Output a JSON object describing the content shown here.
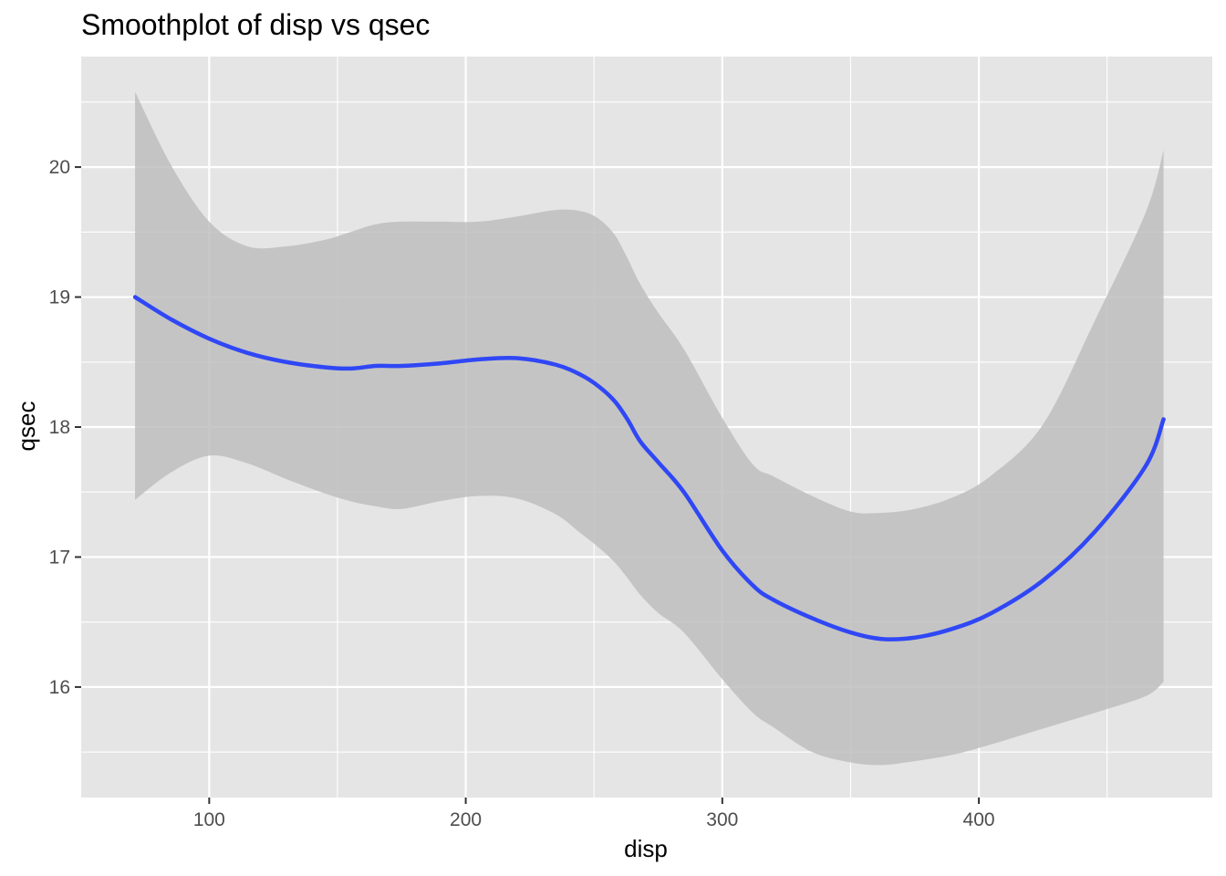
{
  "chart_data": {
    "type": "line",
    "title": "Smoothplot of disp vs qsec",
    "xlabel": "disp",
    "ylabel": "qsec",
    "xlim": [
      50.1,
      491.0
    ],
    "ylim": [
      15.15,
      20.85
    ],
    "x_ticks": [
      100,
      200,
      300,
      400
    ],
    "x_tick_labels": [
      "100",
      "200",
      "300",
      "400"
    ],
    "y_ticks": [
      16,
      17,
      18,
      19,
      20
    ],
    "y_tick_labels": [
      "16",
      "17",
      "18",
      "19",
      "20"
    ],
    "grid": true,
    "legend": false,
    "colors": {
      "panel_background": "#e5e5e5",
      "grid": "#ffffff",
      "ribbon": "#bebebe",
      "line": "#3047f5",
      "tick_label": "#4d4d4d",
      "tick_mark": "#333333"
    },
    "series": [
      {
        "x": [
          71.1,
          85,
          100,
          115,
          130,
          145,
          155,
          165,
          175,
          190,
          205,
          220,
          235,
          245,
          252,
          258,
          263,
          268,
          275,
          285,
          300,
          312,
          320,
          335,
          350,
          362,
          375,
          390,
          405,
          425,
          445,
          465,
          472
        ],
        "y": [
          19.0,
          18.83,
          18.68,
          18.57,
          18.5,
          18.46,
          18.45,
          18.47,
          18.47,
          18.49,
          18.52,
          18.53,
          18.48,
          18.4,
          18.31,
          18.2,
          18.06,
          17.89,
          17.73,
          17.5,
          17.05,
          16.78,
          16.67,
          16.53,
          16.42,
          16.37,
          16.38,
          16.45,
          16.57,
          16.82,
          17.19,
          17.7,
          18.06
        ],
        "ci_upper": [
          20.58,
          20.02,
          19.58,
          19.39,
          19.39,
          19.44,
          19.5,
          19.56,
          19.58,
          19.58,
          19.58,
          19.62,
          19.67,
          19.66,
          19.6,
          19.48,
          19.3,
          19.1,
          18.88,
          18.6,
          18.07,
          17.71,
          17.62,
          17.47,
          17.35,
          17.34,
          17.37,
          17.46,
          17.63,
          18.02,
          18.81,
          19.65,
          20.13
        ],
        "ci_lower": [
          17.44,
          17.65,
          17.78,
          17.72,
          17.6,
          17.49,
          17.43,
          17.39,
          17.37,
          17.43,
          17.47,
          17.45,
          17.33,
          17.18,
          17.07,
          16.96,
          16.84,
          16.71,
          16.57,
          16.42,
          16.06,
          15.8,
          15.69,
          15.5,
          15.42,
          15.4,
          15.43,
          15.48,
          15.56,
          15.68,
          15.8,
          15.93,
          16.04
        ]
      }
    ]
  }
}
